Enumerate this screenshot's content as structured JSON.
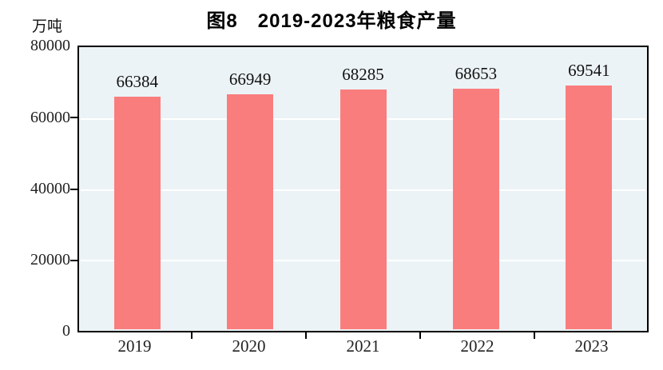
{
  "chart_data": {
    "type": "bar",
    "title": "图8　2019-2023年粮食产量",
    "unit_label": "万吨",
    "categories": [
      "2019",
      "2020",
      "2021",
      "2022",
      "2023"
    ],
    "values": [
      66384,
      66949,
      68285,
      68653,
      69541
    ],
    "xlabel": "",
    "ylabel": "万吨",
    "ylim": [
      0,
      80000
    ],
    "ytick_interval": 20000,
    "legend": "none",
    "grid": "horizontal white gridlines at 20000 intervals",
    "bar_color": "#FA7D7D",
    "plot_bg": "#ECF3F6",
    "axis_color": "#000000",
    "title_color": "#000000"
  },
  "y_axis": {
    "labels": [
      "80000",
      "60000",
      "40000",
      "20000",
      "0"
    ]
  }
}
